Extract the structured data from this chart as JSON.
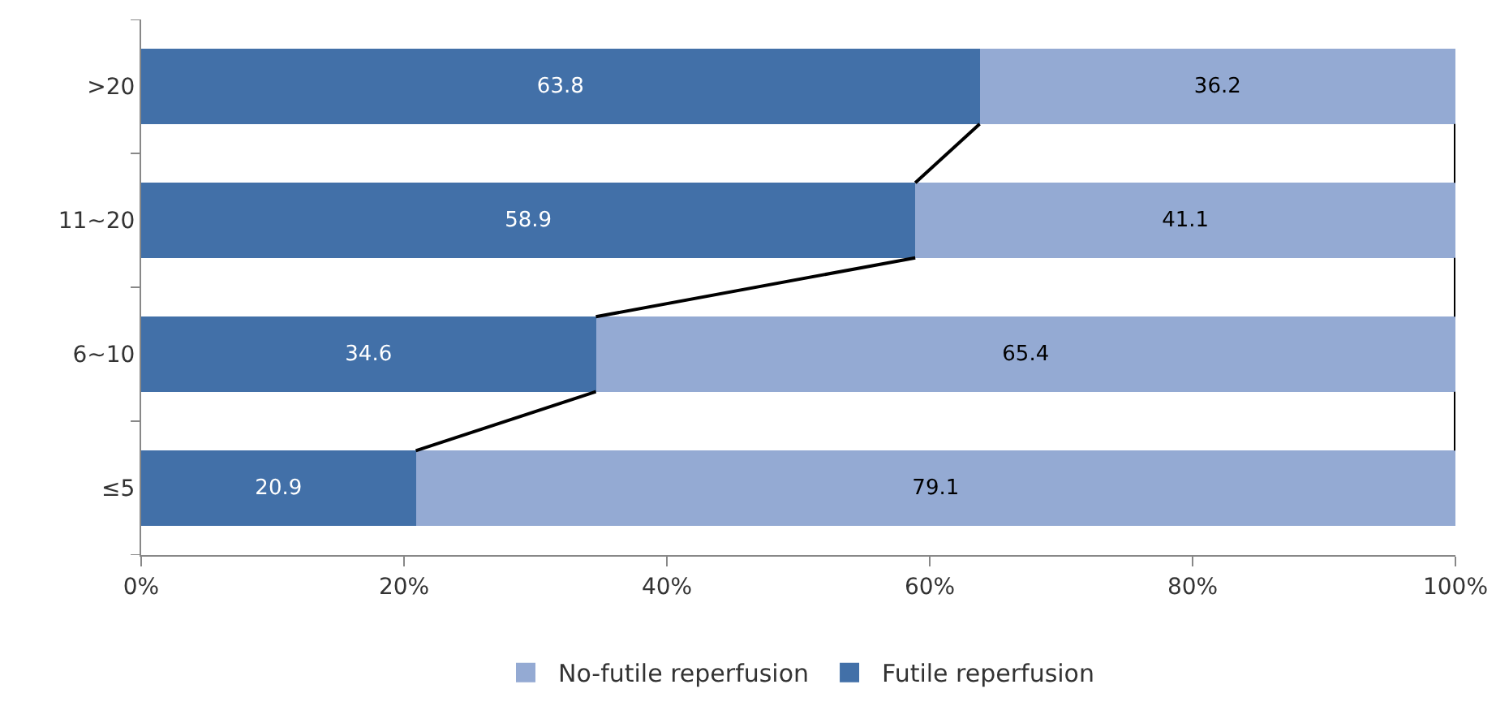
{
  "chart_data": {
    "type": "bar",
    "orientation": "horizontal",
    "stacked": true,
    "categories": [
      ">20",
      "11~20",
      "6~10",
      "≤5"
    ],
    "series": [
      {
        "name": "Futile reperfusion",
        "color": "#4270a8",
        "values": [
          63.8,
          58.9,
          34.6,
          20.9
        ]
      },
      {
        "name": "No-futile reperfusion",
        "color": "#94aad3",
        "values": [
          36.2,
          41.1,
          65.4,
          79.1
        ]
      }
    ],
    "xlim": [
      0,
      100
    ],
    "xticks": [
      {
        "value": 0,
        "label": "0%"
      },
      {
        "value": 20,
        "label": "20%"
      },
      {
        "value": 40,
        "label": "40%"
      },
      {
        "value": 60,
        "label": "60%"
      },
      {
        "value": 80,
        "label": "80%"
      },
      {
        "value": 100,
        "label": "100%"
      }
    ],
    "data_labels": true,
    "grid": false,
    "legend": "bottom"
  }
}
